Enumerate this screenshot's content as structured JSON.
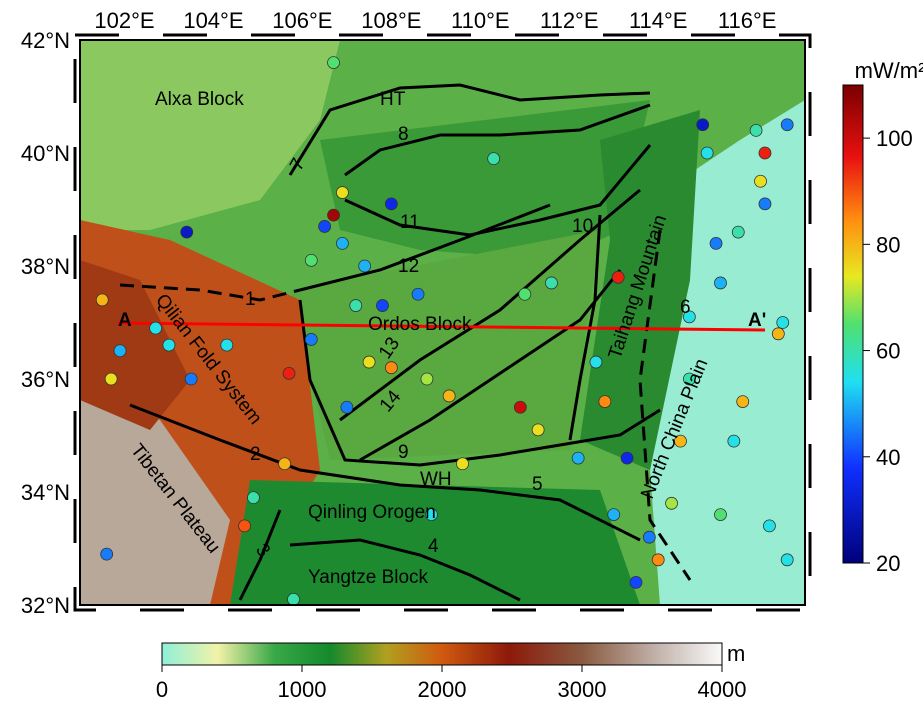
{
  "map": {
    "xlim": [
      101,
      117.3
    ],
    "ylim": [
      32,
      42
    ],
    "lon_ticks": [
      {
        "value": 102,
        "label": "102°E"
      },
      {
        "value": 104,
        "label": "104°E"
      },
      {
        "value": 106,
        "label": "106°E"
      },
      {
        "value": 108,
        "label": "108°E"
      },
      {
        "value": 110,
        "label": "110°E"
      },
      {
        "value": 112,
        "label": "112°E"
      },
      {
        "value": 114,
        "label": "114°E"
      },
      {
        "value": 116,
        "label": "116°E"
      }
    ],
    "lat_ticks": [
      {
        "value": 32,
        "label": "32°N"
      },
      {
        "value": 34,
        "label": "34°N"
      },
      {
        "value": 36,
        "label": "36°N"
      },
      {
        "value": 38,
        "label": "38°N"
      },
      {
        "value": 40,
        "label": "40°N"
      },
      {
        "value": 42,
        "label": "42°N"
      }
    ],
    "labels": [
      "Alxa Block",
      "HT",
      "Ordos Block",
      "Qilian Fold System",
      "Tibetan Plateau",
      "Qinling Orogen",
      "Yangtze Block",
      "North China Plain",
      "Taihang Mountain",
      "WH",
      "A",
      "A'",
      "1",
      "2",
      "3",
      "4",
      "5",
      "6",
      "7",
      "8",
      "9",
      "10",
      "11",
      "12",
      "13",
      "14"
    ]
  },
  "heat_flow": {
    "unit": "mW/m²",
    "lim": [
      20,
      110
    ],
    "ticks": [
      20,
      40,
      60,
      80,
      100
    ],
    "points": [
      {
        "lon": 103.4,
        "lat": 38.6,
        "value": 30
      },
      {
        "lon": 101.5,
        "lat": 37.4,
        "value": 80
      },
      {
        "lon": 101.9,
        "lat": 36.5,
        "value": 50
      },
      {
        "lon": 101.7,
        "lat": 36.0,
        "value": 75
      },
      {
        "lon": 102.7,
        "lat": 36.9,
        "value": 55
      },
      {
        "lon": 103.0,
        "lat": 36.6,
        "value": 55
      },
      {
        "lon": 103.5,
        "lat": 36.0,
        "value": 45
      },
      {
        "lon": 104.3,
        "lat": 36.6,
        "value": 55
      },
      {
        "lon": 105.7,
        "lat": 36.1,
        "value": 95
      },
      {
        "lon": 106.2,
        "lat": 36.7,
        "value": 45
      },
      {
        "lon": 105.6,
        "lat": 34.5,
        "value": 80
      },
      {
        "lon": 104.7,
        "lat": 33.4,
        "value": 90
      },
      {
        "lon": 101.6,
        "lat": 32.9,
        "value": 45
      },
      {
        "lon": 104.9,
        "lat": 33.9,
        "value": 60
      },
      {
        "lon": 106.9,
        "lat": 39.3,
        "value": 75
      },
      {
        "lon": 106.7,
        "lat": 38.9,
        "value": 105
      },
      {
        "lon": 106.5,
        "lat": 38.7,
        "value": 40
      },
      {
        "lon": 108.0,
        "lat": 39.1,
        "value": 35
      },
      {
        "lon": 106.9,
        "lat": 38.4,
        "value": 50
      },
      {
        "lon": 106.2,
        "lat": 38.1,
        "value": 65
      },
      {
        "lon": 107.4,
        "lat": 38.0,
        "value": 50
      },
      {
        "lon": 108.6,
        "lat": 37.5,
        "value": 45
      },
      {
        "lon": 107.8,
        "lat": 37.3,
        "value": 40
      },
      {
        "lon": 107.2,
        "lat": 37.3,
        "value": 60
      },
      {
        "lon": 107.5,
        "lat": 36.3,
        "value": 75
      },
      {
        "lon": 108.0,
        "lat": 36.2,
        "value": 85
      },
      {
        "lon": 107.0,
        "lat": 35.5,
        "value": 45
      },
      {
        "lon": 108.8,
        "lat": 36.0,
        "value": 70
      },
      {
        "lon": 109.3,
        "lat": 35.7,
        "value": 80
      },
      {
        "lon": 109.6,
        "lat": 34.5,
        "value": 75
      },
      {
        "lon": 108.9,
        "lat": 33.6,
        "value": 55
      },
      {
        "lon": 110.3,
        "lat": 39.9,
        "value": 60
      },
      {
        "lon": 111.6,
        "lat": 37.7,
        "value": 60
      },
      {
        "lon": 111.0,
        "lat": 37.5,
        "value": 65
      },
      {
        "lon": 110.9,
        "lat": 35.5,
        "value": 100
      },
      {
        "lon": 111.3,
        "lat": 35.1,
        "value": 75
      },
      {
        "lon": 112.6,
        "lat": 36.3,
        "value": 55
      },
      {
        "lon": 113.1,
        "lat": 37.8,
        "value": 95
      },
      {
        "lon": 112.8,
        "lat": 35.6,
        "value": 85
      },
      {
        "lon": 112.2,
        "lat": 34.6,
        "value": 50
      },
      {
        "lon": 113.3,
        "lat": 34.6,
        "value": 35
      },
      {
        "lon": 113.0,
        "lat": 33.6,
        "value": 50
      },
      {
        "lon": 113.5,
        "lat": 32.4,
        "value": 40
      },
      {
        "lon": 114.7,
        "lat": 37.1,
        "value": 55
      },
      {
        "lon": 115.4,
        "lat": 37.7,
        "value": 50
      },
      {
        "lon": 115.3,
        "lat": 38.4,
        "value": 45
      },
      {
        "lon": 115.8,
        "lat": 38.6,
        "value": 60
      },
      {
        "lon": 116.3,
        "lat": 39.5,
        "value": 75
      },
      {
        "lon": 116.4,
        "lat": 40.0,
        "value": 95
      },
      {
        "lon": 116.4,
        "lat": 39.1,
        "value": 45
      },
      {
        "lon": 116.8,
        "lat": 37.0,
        "value": 55
      },
      {
        "lon": 116.7,
        "lat": 36.8,
        "value": 80
      },
      {
        "lon": 115.9,
        "lat": 35.6,
        "value": 80
      },
      {
        "lon": 115.7,
        "lat": 34.9,
        "value": 55
      },
      {
        "lon": 115.4,
        "lat": 33.6,
        "value": 65
      },
      {
        "lon": 116.5,
        "lat": 33.4,
        "value": 55
      },
      {
        "lon": 116.9,
        "lat": 32.8,
        "value": 55
      },
      {
        "lon": 114.3,
        "lat": 33.8,
        "value": 70
      },
      {
        "lon": 114.5,
        "lat": 34.9,
        "value": 80
      },
      {
        "lon": 115.1,
        "lat": 40.0,
        "value": 55
      },
      {
        "lon": 115.0,
        "lat": 40.5,
        "value": 30
      },
      {
        "lon": 116.2,
        "lat": 40.4,
        "value": 60
      },
      {
        "lon": 116.9,
        "lat": 40.5,
        "value": 45
      },
      {
        "lon": 114.7,
        "lat": 36.0,
        "value": 60
      },
      {
        "lon": 113.8,
        "lat": 33.2,
        "value": 45
      },
      {
        "lon": 114.0,
        "lat": 32.8,
        "value": 85
      },
      {
        "lon": 105.8,
        "lat": 32.1,
        "value": 60
      },
      {
        "lon": 106.7,
        "lat": 41.6,
        "value": 65
      }
    ]
  },
  "elevation": {
    "unit": "m",
    "lim": [
      0,
      4000
    ],
    "ticks": [
      0,
      1000,
      2000,
      3000,
      4000
    ]
  }
}
